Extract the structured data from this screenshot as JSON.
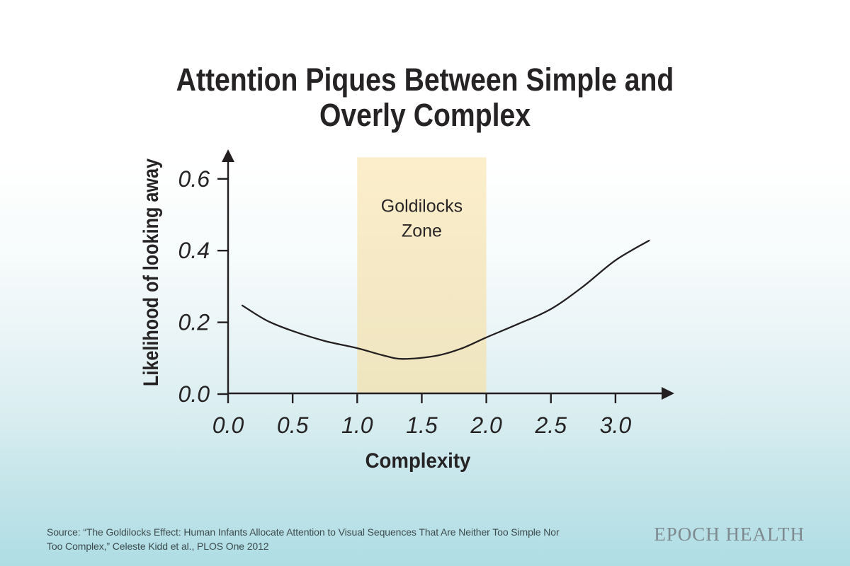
{
  "title": {
    "line1": "Attention Piques Between Simple and",
    "line2": "Overly Complex"
  },
  "chart_data": {
    "type": "line",
    "title": "Attention Piques Between Simple and Overly Complex",
    "xlabel": "Complexity",
    "ylabel": "Likelihood of looking away",
    "xlim": [
      0,
      3.45
    ],
    "ylim": [
      0,
      0.68
    ],
    "grid": false,
    "legend": "none",
    "x_ticks": [
      "0.0",
      "0.5",
      "1.0",
      "1.5",
      "2.0",
      "2.5",
      "3.0"
    ],
    "y_ticks": [
      "0.0",
      "0.2",
      "0.4",
      "0.6"
    ],
    "series": [
      {
        "name": "likelihood_of_looking_away_vs_complexity",
        "color": "#231f20",
        "points": [
          [
            0.11,
            0.247
          ],
          [
            0.3,
            0.205
          ],
          [
            0.5,
            0.176
          ],
          [
            0.75,
            0.148
          ],
          [
            1.0,
            0.128
          ],
          [
            1.2,
            0.108
          ],
          [
            1.35,
            0.098
          ],
          [
            1.6,
            0.106
          ],
          [
            1.8,
            0.126
          ],
          [
            2.0,
            0.158
          ],
          [
            2.25,
            0.196
          ],
          [
            2.5,
            0.237
          ],
          [
            2.75,
            0.3
          ],
          [
            3.0,
            0.373
          ],
          [
            3.26,
            0.428
          ]
        ]
      }
    ],
    "goldilocks_zone": {
      "label_line1": "Goldilocks",
      "label_line2": "Zone",
      "x_start": 1.0,
      "x_end": 2.0,
      "y_top": 0.66,
      "fill_top": "#fceecb",
      "fill_bottom": "#eee5bf"
    }
  },
  "footer": {
    "source_line1": "Source: “The Goldilocks Effect: Human Infants Allocate Attention to Visual Sequences That Are Neither Too Simple Nor",
    "source_line2": "Too Complex,” Celeste Kidd et al., PLOS One 2012",
    "brand": "EPOCH HEALTH"
  },
  "colors": {
    "text_primary": "#262324",
    "axis": "#231f20",
    "curve": "#231f20",
    "zone_fill": "#f8ecc8",
    "source_text": "#3c4b4e",
    "brand_text": "#7d898f",
    "background_top": "#ffffff",
    "background_bottom": "#aedde4"
  }
}
